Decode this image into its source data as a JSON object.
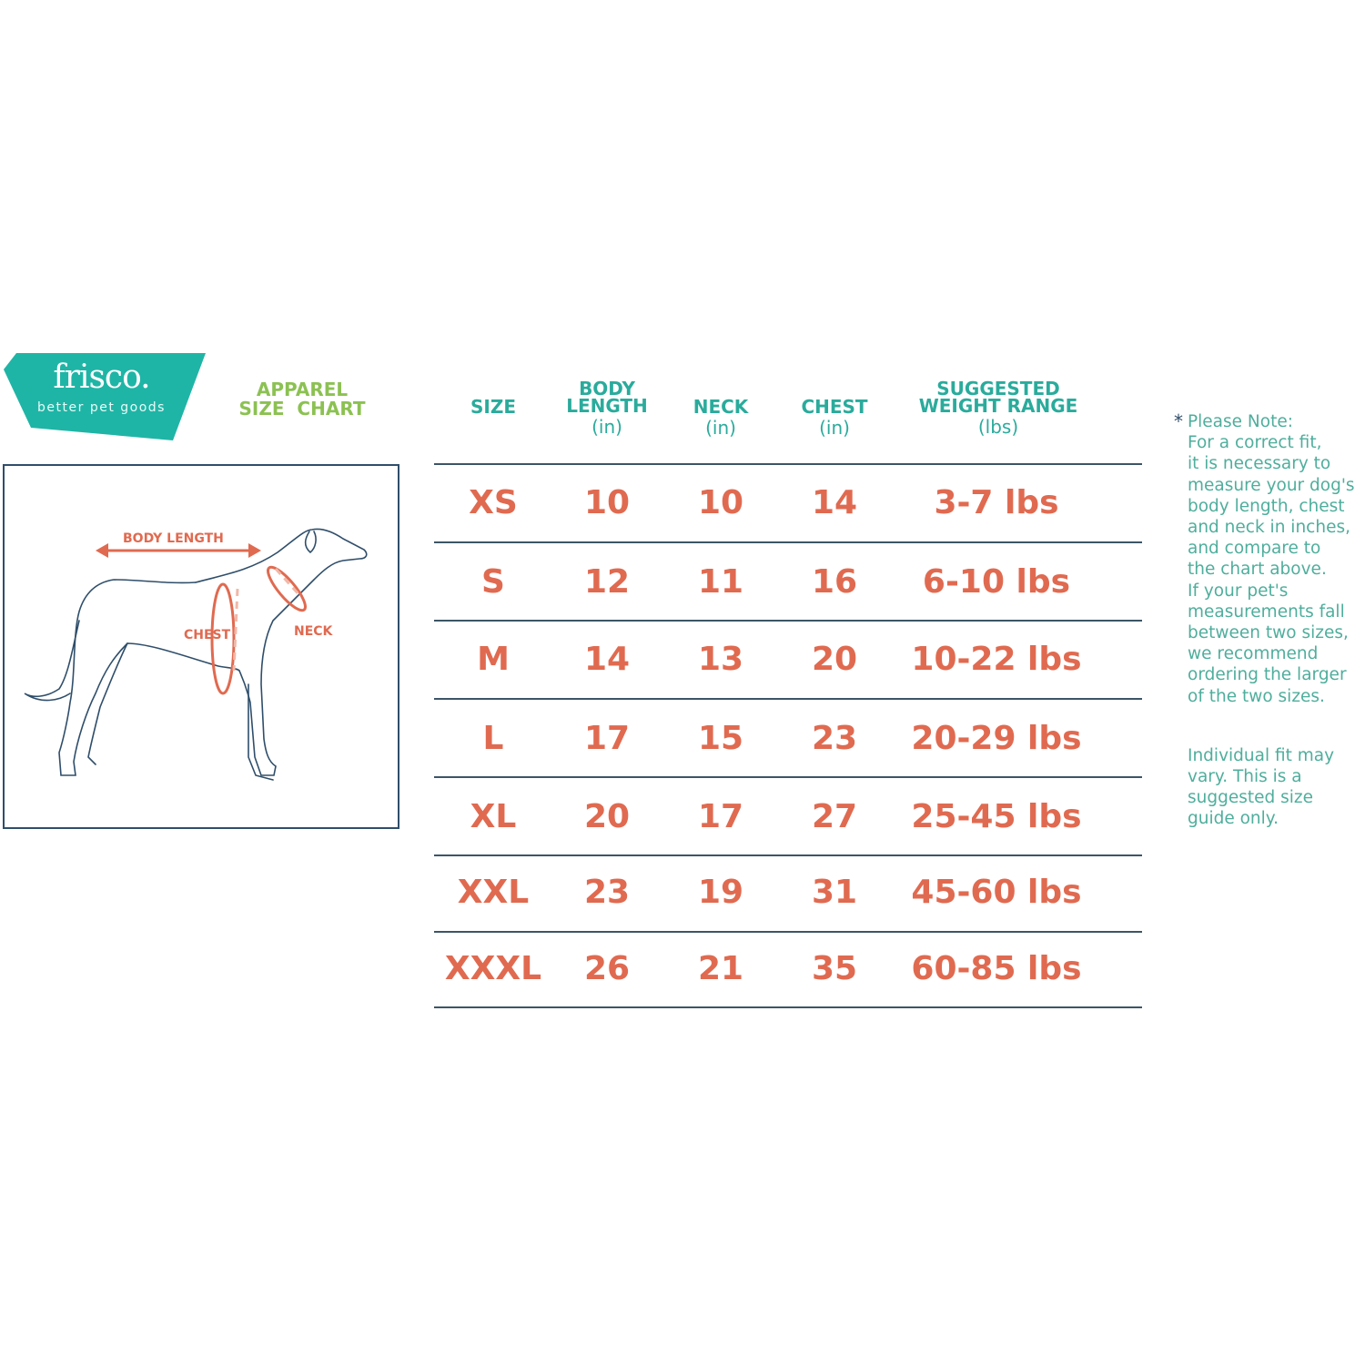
{
  "brand": {
    "name": "frisco.",
    "tagline": "better pet goods",
    "color": "#1fb5a6"
  },
  "title": {
    "line1": "APPAREL",
    "line2": "SIZE  CHART",
    "color": "#8cc152"
  },
  "diagram": {
    "labels": {
      "body_length": "BODY LENGTH",
      "chest": "CHEST",
      "neck": "NECK"
    }
  },
  "table": {
    "headers": [
      {
        "label": "SIZE",
        "unit": ""
      },
      {
        "label": "BODY LENGTH",
        "unit": "(in)"
      },
      {
        "label": "NECK",
        "unit": "(in)"
      },
      {
        "label": "CHEST",
        "unit": "(in)"
      },
      {
        "label": "SUGGESTED WEIGHT RANGE",
        "unit": "(lbs)"
      }
    ],
    "rows": [
      [
        "XS",
        "10",
        "10",
        "14",
        "3-7 lbs"
      ],
      [
        "S",
        "12",
        "11",
        "16",
        "6-10 lbs"
      ],
      [
        "M",
        "14",
        "13",
        "20",
        "10-22 lbs"
      ],
      [
        "L",
        "17",
        "15",
        "23",
        "20-29 lbs"
      ],
      [
        "XL",
        "20",
        "17",
        "27",
        "25-45 lbs"
      ],
      [
        "XXL",
        "23",
        "19",
        "31",
        "45-60 lbs"
      ],
      [
        "XXXL",
        "26",
        "21",
        "35",
        "60-85 lbs"
      ]
    ],
    "header_color": "#2aab9c",
    "value_color": "#e06a50"
  },
  "note": {
    "asterisk": "*",
    "text": "Please Note:\nFor a correct fit,\nit is necessary to\nmeasure your dog's\nbody length, chest\nand neck in inches,\nand compare to\nthe chart above.\nIf your pet's\nmeasurements fall\nbetween two sizes,\nwe recommend\nordering the larger\nof the two sizes.",
    "disclaimer": "Individual fit may\nvary. This is a\nsuggested size\nguide only."
  }
}
